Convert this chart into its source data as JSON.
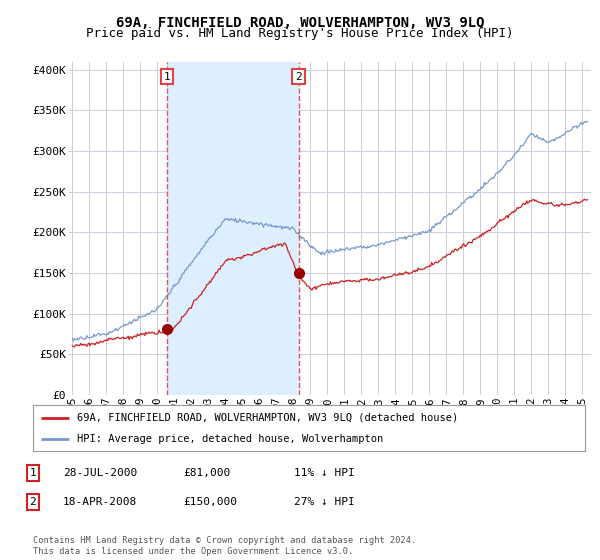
{
  "title": "69A, FINCHFIELD ROAD, WOLVERHAMPTON, WV3 9LQ",
  "subtitle": "Price paid vs. HM Land Registry's House Price Index (HPI)",
  "title_fontsize": 10,
  "subtitle_fontsize": 9,
  "ylabel_ticks": [
    "£0",
    "£50K",
    "£100K",
    "£150K",
    "£200K",
    "£250K",
    "£300K",
    "£350K",
    "£400K"
  ],
  "ytick_values": [
    0,
    50000,
    100000,
    150000,
    200000,
    250000,
    300000,
    350000,
    400000
  ],
  "ylim": [
    0,
    410000
  ],
  "xlim_start": 1994.8,
  "xlim_end": 2025.5,
  "background_color": "#ffffff",
  "grid_color": "#ccccdd",
  "shade_color": "#ddeeff",
  "sale1": {
    "date_num": 2000.57,
    "price": 81000,
    "label": "1"
  },
  "sale2": {
    "date_num": 2008.3,
    "price": 150000,
    "label": "2"
  },
  "vline_color": "#dd4444",
  "sale_dot_color": "#990000",
  "hpi_line_color": "#7799cc",
  "price_line_color": "#cc2222",
  "legend_label_price": "69A, FINCHFIELD ROAD, WOLVERHAMPTON, WV3 9LQ (detached house)",
  "legend_label_hpi": "HPI: Average price, detached house, Wolverhampton",
  "table_rows": [
    {
      "num": "1",
      "date": "28-JUL-2000",
      "price": "£81,000",
      "hpi": "11% ↓ HPI"
    },
    {
      "num": "2",
      "date": "18-APR-2008",
      "price": "£150,000",
      "hpi": "27% ↓ HPI"
    }
  ],
  "footer": "Contains HM Land Registry data © Crown copyright and database right 2024.\nThis data is licensed under the Open Government Licence v3.0.",
  "xtick_years": [
    "95",
    "96",
    "97",
    "98",
    "99",
    "00",
    "01",
    "02",
    "03",
    "04",
    "05",
    "06",
    "07",
    "08",
    "09",
    "10",
    "11",
    "12",
    "13",
    "14",
    "15",
    "16",
    "17",
    "18",
    "19",
    "20",
    "21",
    "22",
    "23",
    "24",
    "25"
  ],
  "xtick_positions": [
    1995,
    1996,
    1997,
    1998,
    1999,
    2000,
    2001,
    2002,
    2003,
    2004,
    2005,
    2006,
    2007,
    2008,
    2009,
    2010,
    2011,
    2012,
    2013,
    2014,
    2015,
    2016,
    2017,
    2018,
    2019,
    2020,
    2021,
    2022,
    2023,
    2024,
    2025
  ]
}
